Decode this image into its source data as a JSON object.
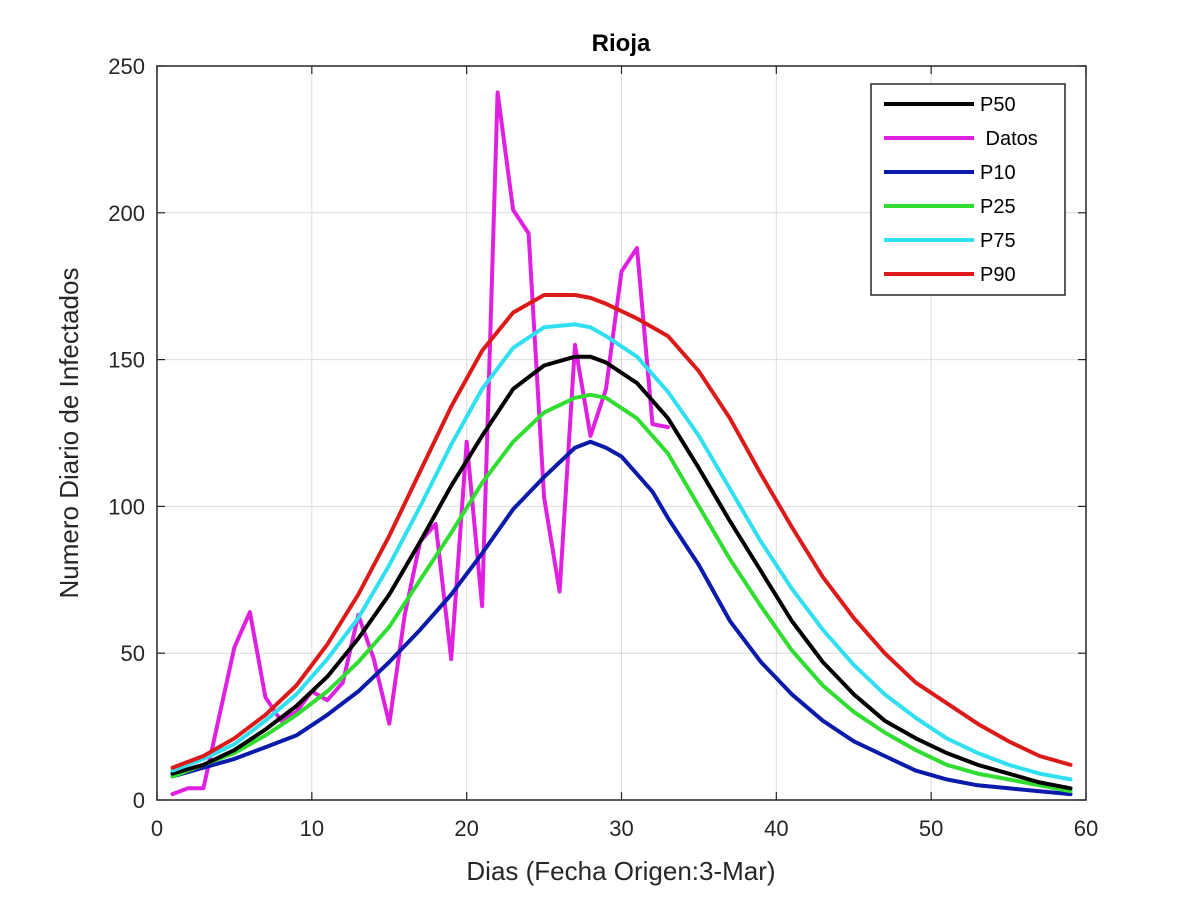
{
  "chart_data": {
    "type": "line",
    "title": "Rioja",
    "xlabel": "Dias (Fecha Origen:3-Mar)",
    "ylabel": "Numero Diario de Infectados",
    "xlim": [
      0,
      60
    ],
    "ylim": [
      0,
      250
    ],
    "xticks": [
      0,
      10,
      20,
      30,
      40,
      50,
      60
    ],
    "yticks": [
      0,
      50,
      100,
      150,
      200,
      250
    ],
    "grid": true,
    "legend_position": "top-right",
    "series": [
      {
        "name": "P50",
        "label": "P50",
        "color": "#000000",
        "x": [
          1,
          3,
          5,
          7,
          9,
          11,
          13,
          15,
          17,
          19,
          21,
          23,
          25,
          27,
          28,
          29,
          31,
          33,
          35,
          37,
          39,
          41,
          43,
          45,
          47,
          49,
          51,
          53,
          55,
          57,
          59
        ],
        "values": [
          9,
          12,
          17,
          24,
          32,
          42,
          55,
          70,
          88,
          107,
          124,
          140,
          148,
          151,
          151,
          149,
          142,
          130,
          113,
          95,
          78,
          61,
          47,
          36,
          27,
          21,
          16,
          12,
          9,
          6,
          4
        ]
      },
      {
        "name": "Datos",
        "label": " Datos",
        "color": "#e020e0",
        "x": [
          1,
          2,
          3,
          4,
          5,
          6,
          7,
          8,
          9,
          10,
          11,
          12,
          13,
          14,
          15,
          16,
          17,
          18,
          19,
          20,
          21,
          22,
          23,
          24,
          25,
          26,
          27,
          28,
          29,
          30,
          31,
          32,
          33
        ],
        "values": [
          2,
          4,
          4,
          28,
          52,
          64,
          35,
          27,
          30,
          37,
          34,
          40,
          63,
          48,
          26,
          63,
          88,
          94,
          48,
          122,
          66,
          241,
          201,
          193,
          103,
          71,
          155,
          124,
          140,
          180,
          188,
          128,
          127
        ]
      },
      {
        "name": "P10",
        "label": "P10",
        "color": "#0a1aaa",
        "x": [
          1,
          3,
          5,
          7,
          9,
          11,
          13,
          15,
          17,
          19,
          21,
          23,
          25,
          27,
          28,
          29,
          30,
          31,
          32,
          33,
          34,
          35,
          37,
          39,
          41,
          43,
          45,
          47,
          49,
          51,
          53,
          55,
          57,
          59
        ],
        "values": [
          8,
          11,
          14,
          18,
          22,
          29,
          37,
          47,
          58,
          70,
          84,
          99,
          110,
          120,
          122,
          120,
          117,
          111,
          105,
          96,
          88,
          80,
          61,
          47,
          36,
          27,
          20,
          15,
          10,
          7,
          5,
          4,
          3,
          2
        ]
      },
      {
        "name": "P25",
        "label": "P25",
        "color": "#30dd30",
        "x": [
          1,
          3,
          5,
          7,
          9,
          11,
          13,
          15,
          17,
          19,
          21,
          23,
          25,
          27,
          28,
          29,
          31,
          33,
          35,
          37,
          39,
          41,
          43,
          45,
          47,
          49,
          51,
          53,
          55,
          57,
          59
        ],
        "values": [
          8,
          12,
          16,
          22,
          29,
          37,
          47,
          59,
          75,
          91,
          108,
          122,
          132,
          137,
          138,
          137,
          130,
          118,
          100,
          82,
          66,
          51,
          39,
          30,
          23,
          17,
          12,
          9,
          7,
          5,
          3
        ]
      },
      {
        "name": "P75",
        "label": "P75",
        "color": "#30e0f0",
        "x": [
          1,
          3,
          5,
          7,
          9,
          11,
          13,
          15,
          17,
          19,
          21,
          23,
          25,
          27,
          28,
          29,
          31,
          33,
          35,
          37,
          39,
          41,
          43,
          45,
          47,
          49,
          51,
          53,
          55,
          57,
          59
        ],
        "values": [
          10,
          14,
          19,
          27,
          36,
          48,
          62,
          80,
          100,
          121,
          140,
          154,
          161,
          162,
          161,
          158,
          151,
          139,
          124,
          106,
          88,
          72,
          58,
          46,
          36,
          28,
          21,
          16,
          12,
          9,
          7
        ]
      },
      {
        "name": "P90",
        "label": "P90",
        "color": "#dd1a1a",
        "x": [
          1,
          3,
          5,
          7,
          9,
          11,
          13,
          15,
          17,
          19,
          21,
          23,
          25,
          27,
          28,
          29,
          31,
          33,
          35,
          37,
          39,
          41,
          43,
          45,
          47,
          49,
          51,
          53,
          55,
          57,
          59
        ],
        "values": [
          11,
          15,
          21,
          29,
          39,
          53,
          70,
          90,
          112,
          134,
          153,
          166,
          172,
          172,
          171,
          169,
          164,
          158,
          146,
          130,
          111,
          93,
          76,
          62,
          50,
          40,
          33,
          26,
          20,
          15,
          12
        ]
      }
    ],
    "legend_order": [
      "P50",
      "Datos",
      "P10",
      "P25",
      "P75",
      "P90"
    ]
  }
}
